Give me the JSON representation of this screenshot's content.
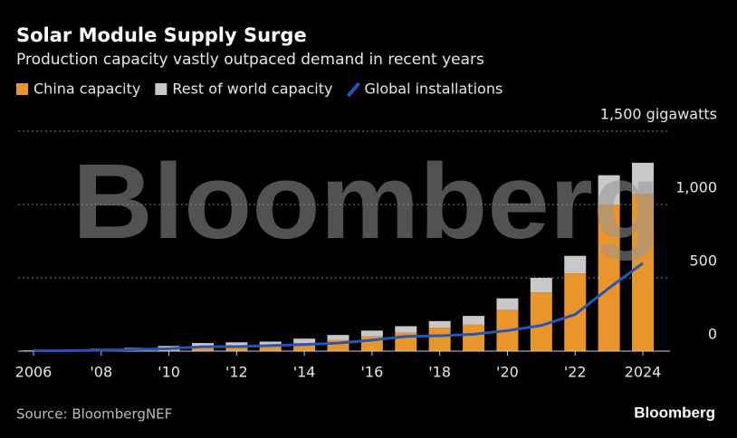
{
  "chart_data": {
    "type": "bar",
    "stacked": true,
    "title": "Solar Module Supply Surge",
    "subtitle": "Production capacity vastly outpaced demand in recent years",
    "x": [
      2006,
      2007,
      2008,
      2009,
      2010,
      2011,
      2012,
      2013,
      2014,
      2015,
      2016,
      2017,
      2018,
      2019,
      2020,
      2021,
      2022,
      2023,
      2024
    ],
    "series": [
      {
        "name": "China capacity",
        "type": "bar",
        "color": "#e8952c",
        "values": [
          2,
          4,
          8,
          12,
          20,
          30,
          35,
          40,
          55,
          75,
          100,
          125,
          160,
          180,
          280,
          400,
          530,
          1000,
          1070
        ]
      },
      {
        "name": "Rest of world capacity",
        "type": "bar",
        "color": "#c8c8c8",
        "values": [
          3,
          5,
          8,
          10,
          15,
          25,
          25,
          25,
          30,
          35,
          40,
          45,
          45,
          60,
          80,
          100,
          120,
          200,
          215
        ]
      },
      {
        "name": "Global installations",
        "type": "line",
        "color": "#2456b8",
        "values": [
          2,
          3,
          6,
          10,
          17,
          30,
          31,
          38,
          45,
          55,
          75,
          100,
          105,
          115,
          140,
          175,
          250,
          430,
          600
        ]
      }
    ],
    "xlim": [
      2005.5,
      2025.3
    ],
    "xticks": [
      {
        "value": 2006,
        "label": "2006"
      },
      {
        "value": 2008,
        "label": "'08"
      },
      {
        "value": 2010,
        "label": "'10"
      },
      {
        "value": 2012,
        "label": "'12"
      },
      {
        "value": 2014,
        "label": "'14"
      },
      {
        "value": 2016,
        "label": "'16"
      },
      {
        "value": 2018,
        "label": "'18"
      },
      {
        "value": 2020,
        "label": "'20"
      },
      {
        "value": 2022,
        "label": "'22"
      },
      {
        "value": 2024,
        "label": "2024"
      }
    ],
    "ylim": [
      0,
      1500
    ],
    "yticks": [
      0,
      500,
      {
        "value": 1000,
        "label": "1,000"
      },
      {
        "value": 1500,
        "label": "1,500 gigawatts"
      }
    ],
    "grid": true,
    "watermark": "Bloomberg",
    "source": "Source: BloombergNEF",
    "logo": "Bloomberg"
  }
}
